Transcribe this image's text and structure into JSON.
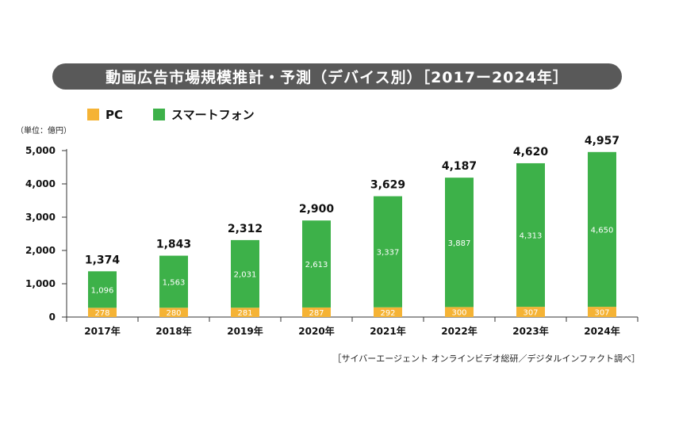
{
  "title": "動画広告市場規模推計・予測（デバイス別）［2017ー2024年］",
  "unit_label": "（単位：億円）",
  "source": "［サイバーエージェント オンラインビデオ総研／デジタルインファクト調べ］",
  "legend": [
    {
      "label": "PC",
      "color": "#f5b335"
    },
    {
      "label": "スマートフォン",
      "color": "#3db149"
    }
  ],
  "chart_data": {
    "type": "bar",
    "stacked": true,
    "categories": [
      "2017年",
      "2018年",
      "2019年",
      "2020年",
      "2021年",
      "2022年",
      "2023年",
      "2024年"
    ],
    "series": [
      {
        "name": "PC",
        "values": [
          278,
          280,
          281,
          287,
          292,
          300,
          307,
          307
        ],
        "color": "#f5b335"
      },
      {
        "name": "スマートフォン",
        "values": [
          1096,
          1563,
          2031,
          2613,
          3337,
          3887,
          4313,
          4650
        ],
        "color": "#3db149"
      }
    ],
    "totals": [
      "1,374",
      "1,843",
      "2,312",
      "2,900",
      "3,629",
      "4,187",
      "4,620",
      "4,957"
    ],
    "segment_labels": {
      "PC": [
        "278",
        "280",
        "281",
        "287",
        "292",
        "300",
        "307",
        "307"
      ],
      "スマートフォン": [
        "1,096",
        "1,563",
        "2,031",
        "2,613",
        "3,337",
        "3,887",
        "4,313",
        "4,650"
      ]
    },
    "yticks": [
      "0",
      "1,000",
      "2,000",
      "3,000",
      "4,000",
      "5,000"
    ],
    "ylim": [
      0,
      5000
    ],
    "grid": false,
    "legend_position": "top-left"
  }
}
